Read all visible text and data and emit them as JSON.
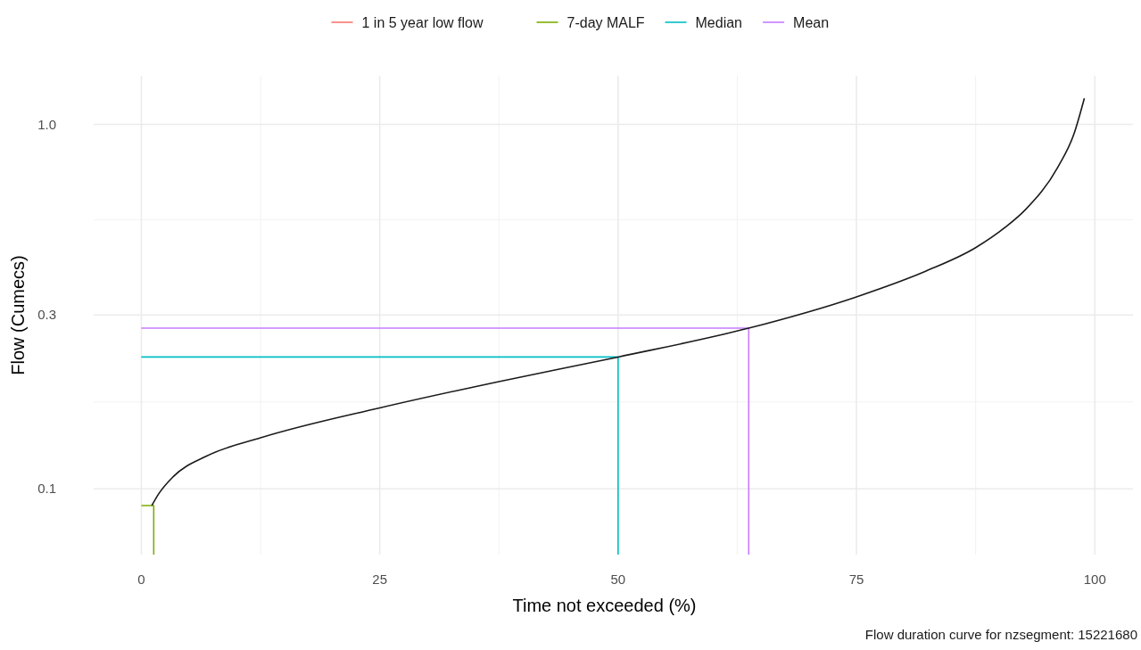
{
  "chart_data": {
    "type": "line",
    "xlabel": "Time not exceeded (%)",
    "ylabel": "Flow (Cumecs)",
    "annotations": [
      "Flow duration curve for nzsegment: 15221680"
    ],
    "xlim": [
      -5,
      104
    ],
    "ylim": [
      0.066,
      1.36
    ],
    "xticks": [
      0,
      25,
      50,
      75,
      100
    ],
    "yticks": [
      0.1,
      0.3,
      {
        "value": 1,
        "label": "1.0"
      }
    ],
    "log": "y",
    "grid": true,
    "legend": "top",
    "marker": "none",
    "line_style": "solid",
    "series": [
      {
        "name": "1 in 5 year low flow",
        "color": "#f8766d",
        "values": [
          null
        ]
      },
      {
        "name": "7-day MALF",
        "color": "#7cae00",
        "x": [
          0,
          1.3,
          1.3
        ],
        "values": [
          0.09,
          0.09,
          0.066
        ]
      },
      {
        "name": "Median",
        "color": "#00bfc4",
        "x": [
          0,
          50,
          50
        ],
        "values": [
          0.23,
          0.23,
          0.066
        ]
      },
      {
        "name": "Mean",
        "color": "#c77cff",
        "x": [
          0,
          63.7,
          63.7
        ],
        "values": [
          0.276,
          0.276,
          0.066
        ]
      },
      {
        "color": "#1a1a1a",
        "x": [
          1.1,
          1.83,
          3.34,
          6.84,
          12.5,
          25.1,
          37.5,
          50,
          63.7,
          74.8,
          82.3,
          87.5,
          90.6,
          92.7,
          96.1,
          97.8,
          98.9
        ],
        "values": [
          0.09,
          0.097,
          0.108,
          0.123,
          0.138,
          0.167,
          0.197,
          0.23,
          0.276,
          0.335,
          0.396,
          0.459,
          0.522,
          0.583,
          0.762,
          0.94,
          1.18
        ]
      }
    ]
  }
}
